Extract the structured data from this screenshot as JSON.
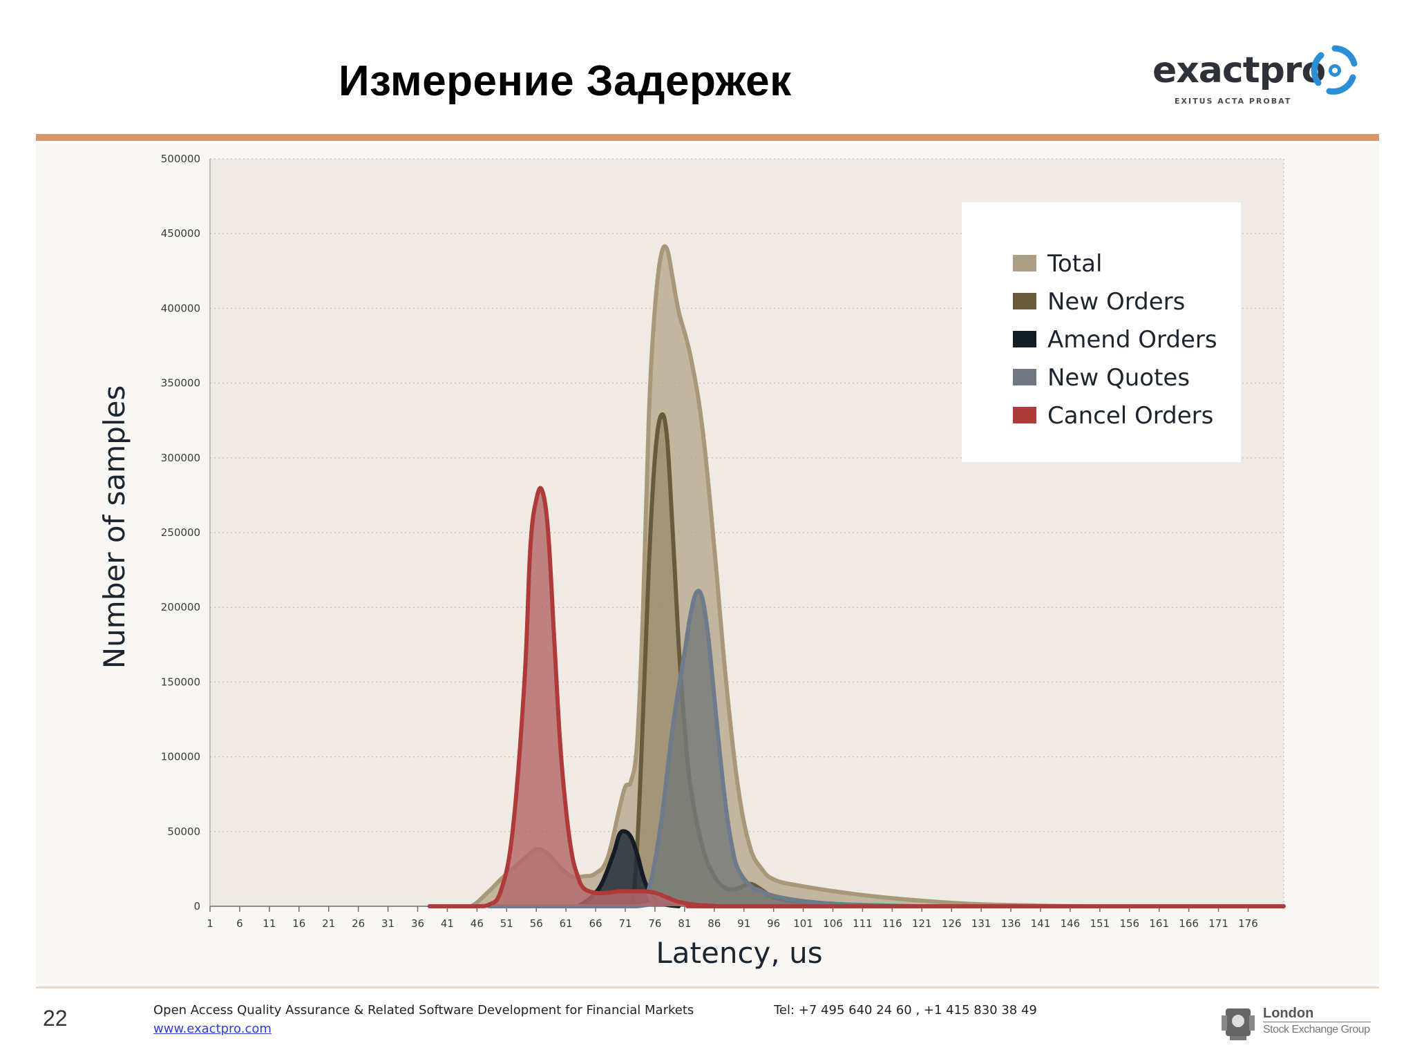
{
  "slide": {
    "title": "Измерение Задержек",
    "page_number": "22",
    "footer_description": "Open Access Quality Assurance & Related Software Development for Financial Markets",
    "footer_url": "www.exactpro.com",
    "footer_tel": "Tel: +7 495 640 24 60 ,  +1 415 830 38 49"
  },
  "logo": {
    "wordmark": "exactpro",
    "tagline": "EXITUS ACTA PROBAT",
    "icon": "exactpro-swirl-icon"
  },
  "partner_logo": {
    "line1": "London",
    "line2": "Stock Exchange Group",
    "icon": "lse-crest-icon"
  },
  "colors": {
    "title_rule": "#d9956c",
    "panel_bg": "#f8f7f4",
    "plot_bg": "#efebe4"
  },
  "chart_data": {
    "type": "area",
    "title": "",
    "xlabel": "Latency, us",
    "ylabel": "Number of samples",
    "xlim": [
      1,
      182
    ],
    "ylim": [
      0,
      500000
    ],
    "x_ticks": [
      1,
      6,
      11,
      16,
      21,
      26,
      31,
      36,
      41,
      46,
      51,
      56,
      61,
      66,
      71,
      76,
      81,
      86,
      91,
      96,
      101,
      106,
      111,
      116,
      121,
      126,
      131,
      136,
      141,
      146,
      151,
      156,
      161,
      166,
      171,
      176
    ],
    "y_ticks": [
      0,
      50000,
      100000,
      150000,
      200000,
      250000,
      300000,
      350000,
      400000,
      450000,
      500000
    ],
    "grid": true,
    "legend_position": "top-right",
    "series": [
      {
        "name": "Total",
        "fill": "#b8aa90",
        "stroke": "#a89878",
        "points": [
          [
            42,
            0
          ],
          [
            45,
            0
          ],
          [
            48,
            10000
          ],
          [
            50,
            18000
          ],
          [
            52,
            25000
          ],
          [
            54,
            32000
          ],
          [
            56,
            38000
          ],
          [
            58,
            35000
          ],
          [
            60,
            26000
          ],
          [
            62,
            20000
          ],
          [
            64,
            20000
          ],
          [
            66,
            22000
          ],
          [
            68,
            32000
          ],
          [
            70,
            65000
          ],
          [
            71,
            80000
          ],
          [
            72,
            84000
          ],
          [
            73,
            110000
          ],
          [
            74,
            200000
          ],
          [
            75,
            330000
          ],
          [
            76,
            400000
          ],
          [
            77,
            435000
          ],
          [
            78,
            440000
          ],
          [
            79,
            420000
          ],
          [
            80,
            398000
          ],
          [
            82,
            368000
          ],
          [
            84,
            320000
          ],
          [
            86,
            240000
          ],
          [
            88,
            150000
          ],
          [
            90,
            80000
          ],
          [
            92,
            40000
          ],
          [
            94,
            25000
          ],
          [
            96,
            18000
          ],
          [
            100,
            14000
          ],
          [
            110,
            8000
          ],
          [
            120,
            4000
          ],
          [
            130,
            1500
          ],
          [
            140,
            500
          ],
          [
            150,
            0
          ],
          [
            182,
            0
          ]
        ]
      },
      {
        "name": "New Orders",
        "fill": "#9e8d6f",
        "stroke": "#6a5a3c",
        "points": [
          [
            70,
            0
          ],
          [
            72,
            0
          ],
          [
            73,
            40000
          ],
          [
            74,
            130000
          ],
          [
            75,
            230000
          ],
          [
            76,
            300000
          ],
          [
            77,
            328000
          ],
          [
            78,
            315000
          ],
          [
            79,
            250000
          ],
          [
            80,
            175000
          ],
          [
            81,
            120000
          ],
          [
            82,
            80000
          ],
          [
            84,
            40000
          ],
          [
            86,
            20000
          ],
          [
            88,
            12000
          ],
          [
            90,
            12000
          ],
          [
            92,
            15000
          ],
          [
            94,
            11000
          ],
          [
            96,
            6000
          ],
          [
            100,
            3000
          ],
          [
            105,
            1000
          ],
          [
            110,
            0
          ]
        ]
      },
      {
        "name": "Amend Orders",
        "fill": "#1f2935",
        "stroke": "#141c26",
        "points": [
          [
            63,
            0
          ],
          [
            65,
            5000
          ],
          [
            67,
            15000
          ],
          [
            69,
            35000
          ],
          [
            70,
            48000
          ],
          [
            71,
            50000
          ],
          [
            72,
            46000
          ],
          [
            73,
            35000
          ],
          [
            74,
            20000
          ],
          [
            75,
            10000
          ],
          [
            76,
            4000
          ],
          [
            78,
            1000
          ],
          [
            80,
            0
          ]
        ]
      },
      {
        "name": "New Quotes",
        "fill": "#767a7a",
        "stroke": "#6e7b8c",
        "points": [
          [
            48,
            0
          ],
          [
            73,
            0
          ],
          [
            75,
            12000
          ],
          [
            77,
            55000
          ],
          [
            79,
            120000
          ],
          [
            81,
            170000
          ],
          [
            82,
            195000
          ],
          [
            83,
            210000
          ],
          [
            84,
            206000
          ],
          [
            85,
            180000
          ],
          [
            86,
            140000
          ],
          [
            87,
            100000
          ],
          [
            88,
            65000
          ],
          [
            89,
            40000
          ],
          [
            90,
            25000
          ],
          [
            92,
            14000
          ],
          [
            94,
            10000
          ],
          [
            96,
            7000
          ],
          [
            100,
            4000
          ],
          [
            105,
            2000
          ],
          [
            110,
            1000
          ],
          [
            120,
            0
          ]
        ]
      },
      {
        "name": "Cancel Orders",
        "fill": "#b3696a",
        "stroke": "#b03a3a",
        "points": [
          [
            38,
            0
          ],
          [
            46,
            0
          ],
          [
            48,
            1000
          ],
          [
            50,
            10000
          ],
          [
            52,
            50000
          ],
          [
            54,
            150000
          ],
          [
            55,
            240000
          ],
          [
            56,
            272000
          ],
          [
            57,
            278000
          ],
          [
            58,
            250000
          ],
          [
            59,
            180000
          ],
          [
            60,
            110000
          ],
          [
            61,
            65000
          ],
          [
            62,
            35000
          ],
          [
            63,
            20000
          ],
          [
            64,
            12000
          ],
          [
            66,
            9000
          ],
          [
            68,
            9000
          ],
          [
            70,
            10000
          ],
          [
            72,
            10000
          ],
          [
            74,
            10000
          ],
          [
            76,
            9000
          ],
          [
            78,
            6000
          ],
          [
            80,
            3000
          ],
          [
            83,
            1000
          ],
          [
            86,
            300
          ],
          [
            90,
            0
          ],
          [
            182,
            0
          ]
        ]
      }
    ]
  }
}
